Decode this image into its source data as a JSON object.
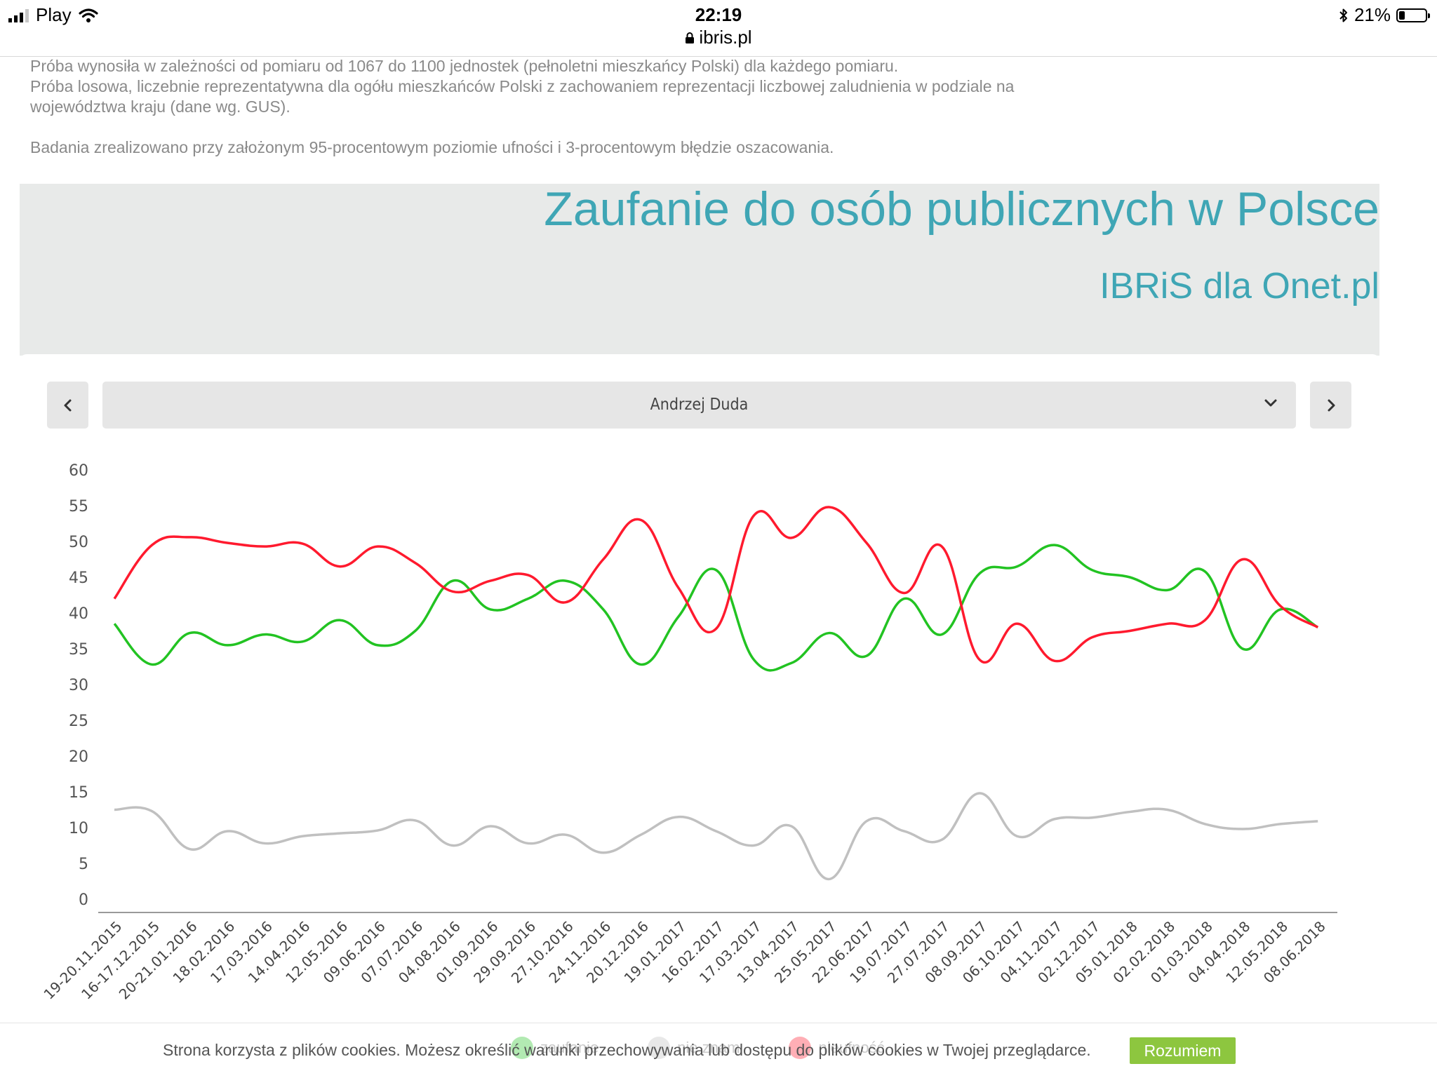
{
  "status_bar": {
    "carrier": "Play",
    "time": "22:19",
    "url": "ibris.pl",
    "battery": "21%",
    "battery_level": 0.21
  },
  "intro": {
    "lines": [
      "Próba wynosiła w zależności od pomiaru od 1067 do 1100 jednostek (pełnoletni mieszkańcy Polski) dla każdego pomiaru.",
      "Próba losowa, liczebnie reprezentatywna dla ogółu mieszkańców Polski z zachowaniem reprezentacji liczbowej zaludnienia w podziale na województwa kraju (dane wg. GUS).",
      "Badania zrealizowano przy założonym 95-procentowym poziomie ufności i 3-procentowym błędzie oszacowania."
    ]
  },
  "header": {
    "title": "Zaufanie do osób publicznych w Polsce",
    "subtitle": "IBRiS dla Onet.pl"
  },
  "selector": {
    "value": "Andrzej Duda",
    "prev_icon": "chevron-left-icon",
    "next_icon": "chevron-right-icon",
    "dropdown_icon": "chevron-down-icon"
  },
  "legend": {
    "trust": "zaufanie",
    "unknown": "nie znam",
    "distrust": "nieufność"
  },
  "cookie": {
    "text": "Strona korzysta z plików cookies. Możesz określić warunki przechowywania lub dostępu do plików cookies w Twojej przeglądarce.",
    "button": "Rozumiem"
  },
  "chart_data": {
    "type": "line",
    "categories": [
      "19-20.11.2015",
      "16-17.12.2015",
      "20-21.01.2016",
      "18.02.2016",
      "17.03.2016",
      "14.04.2016",
      "12.05.2016",
      "09.06.2016",
      "07.07.2016",
      "04.08.2016",
      "01.09.2016",
      "29.09.2016",
      "27.10.2016",
      "24.11.2016",
      "20.12.2016",
      "19.01.2017",
      "16.02.2017",
      "17.03.2017",
      "13.04.2017",
      "25.05.2017",
      "22.06.2017",
      "19.07.2017",
      "27.07.2017",
      "08.09.2017",
      "06.10.2017",
      "04.11.2017",
      "02.12.2017",
      "05.01.2018",
      "02.02.2018",
      "01.03.2018",
      "04.04.2018",
      "12.05.2018",
      "08.06.2018"
    ],
    "series": [
      {
        "name": "zaufanie",
        "color": "#22c322",
        "values": [
          38.5,
          32.8,
          37.2,
          35.5,
          37.0,
          36.0,
          39.0,
          35.5,
          37.5,
          44.5,
          40.5,
          42.0,
          44.5,
          40.5,
          32.8,
          39.5,
          46.0,
          33.5,
          33.0,
          37.2,
          34.0,
          42.0,
          37.0,
          45.5,
          46.5,
          49.5,
          46.0,
          45.0,
          43.2,
          45.8,
          35.0,
          40.5,
          38.0
        ]
      },
      {
        "name": "nie znam",
        "color": "#c0c0c0",
        "values": [
          12.5,
          12.3,
          7.0,
          9.5,
          7.8,
          8.8,
          9.2,
          9.6,
          11.0,
          7.5,
          10.2,
          7.8,
          9.0,
          6.5,
          9.0,
          11.5,
          9.5,
          7.5,
          10.2,
          2.8,
          10.9,
          9.5,
          8.3,
          14.8,
          8.8,
          11.2,
          11.4,
          12.2,
          12.5,
          10.5,
          9.8,
          10.5,
          10.9
        ]
      },
      {
        "name": "nieufność",
        "color": "#ff1a2e",
        "values": [
          42.0,
          49.5,
          50.6,
          49.8,
          49.3,
          49.7,
          46.5,
          49.3,
          47.0,
          43.0,
          44.5,
          45.3,
          41.5,
          47.5,
          53.0,
          43.5,
          37.8,
          53.6,
          50.5,
          54.8,
          49.8,
          42.8,
          49.3,
          33.5,
          38.5,
          33.3,
          36.6,
          37.5,
          38.5,
          39.0,
          47.5,
          41.0,
          38.0
        ]
      }
    ],
    "ylim": [
      0,
      60
    ],
    "yticks": [
      0,
      5,
      10,
      15,
      20,
      25,
      30,
      35,
      40,
      45,
      50,
      55,
      60
    ],
    "grid": false,
    "legend_position": "bottom"
  }
}
